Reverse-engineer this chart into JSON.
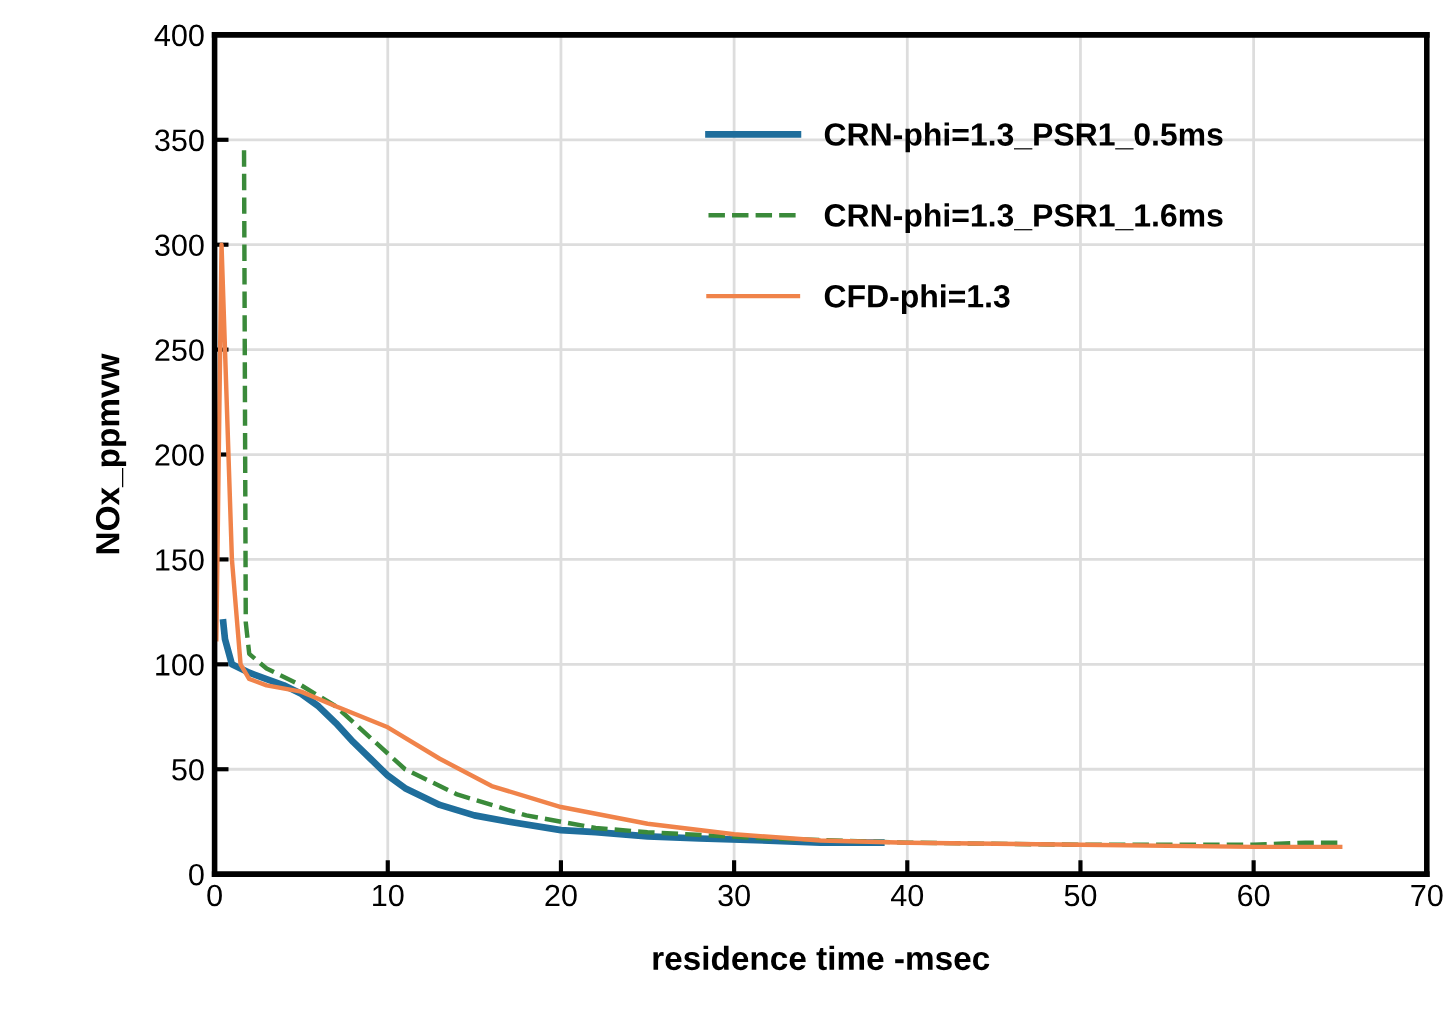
{
  "chart_data": {
    "type": "line",
    "xlabel": "residence time -msec",
    "ylabel": "NOx_ppmvw",
    "xlim": [
      0,
      70
    ],
    "xticks": [
      0,
      10,
      20,
      30,
      40,
      50,
      60,
      70
    ],
    "ylim": [
      0,
      400
    ],
    "yticks": [
      0,
      50,
      100,
      150,
      200,
      250,
      300,
      350,
      400
    ],
    "grid": true,
    "legend": "top",
    "marker": "none",
    "series": [
      {
        "name": "CRN-phi=1.3_PSR1_0.5ms",
        "color": "#1f6e9c",
        "line_style": "solid",
        "x": [
          0.5,
          0.6,
          1,
          2,
          3,
          4,
          5,
          6,
          7,
          8,
          9,
          10,
          11,
          13,
          15,
          17,
          20,
          22,
          25,
          28,
          32,
          35,
          38.5
        ],
        "values": [
          120,
          112,
          100,
          96,
          93,
          90,
          86,
          80,
          72,
          63,
          55,
          47,
          41,
          33,
          28,
          25,
          21,
          20,
          18,
          17,
          16,
          15,
          15
        ]
      },
      {
        "name": "CRN-phi=1.3_PSR1_1.6ms",
        "color": "#3a8a3a",
        "line_style": "dashed",
        "x": [
          1.7,
          1.8,
          2,
          3,
          5,
          7,
          9,
          11,
          14,
          18,
          22,
          25,
          32,
          40,
          50,
          60,
          63,
          65
        ],
        "values": [
          345,
          120,
          105,
          98,
          90,
          80,
          65,
          50,
          38,
          28,
          22,
          20,
          17,
          15,
          14,
          14,
          15,
          15
        ]
      },
      {
        "name": "CFD-phi=1.3",
        "color": "#f0834a",
        "line_style": "solid",
        "x": [
          0.1,
          0.4,
          0.6,
          1,
          1.5,
          2,
          3,
          5,
          7,
          10,
          13,
          16,
          20,
          25,
          30,
          35,
          40,
          50,
          60,
          65
        ],
        "values": [
          112,
          300,
          250,
          150,
          100,
          93,
          90,
          87,
          80,
          70,
          55,
          42,
          32,
          24,
          19,
          16,
          15,
          14,
          13,
          13
        ]
      }
    ]
  }
}
